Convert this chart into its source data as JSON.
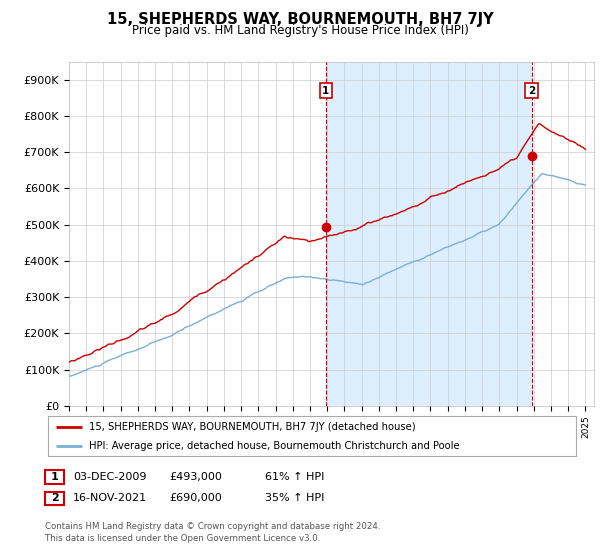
{
  "title": "15, SHEPHERDS WAY, BOURNEMOUTH, BH7 7JY",
  "subtitle": "Price paid vs. HM Land Registry's House Price Index (HPI)",
  "ylim": [
    0,
    950000
  ],
  "yticks": [
    0,
    100000,
    200000,
    300000,
    400000,
    500000,
    600000,
    700000,
    800000,
    900000
  ],
  "ytick_labels": [
    "£0",
    "£100K",
    "£200K",
    "£300K",
    "£400K",
    "£500K",
    "£600K",
    "£700K",
    "£800K",
    "£900K"
  ],
  "hpi_color": "#7bafd4",
  "price_color": "#cc0000",
  "shade_color": "#ddeeff",
  "sale1_date": 2009.92,
  "sale1_price": 493000,
  "sale1_label": "1",
  "sale2_date": 2021.88,
  "sale2_price": 690000,
  "sale2_label": "2",
  "legend_line1": "15, SHEPHERDS WAY, BOURNEMOUTH, BH7 7JY (detached house)",
  "legend_line2": "HPI: Average price, detached house, Bournemouth Christchurch and Poole",
  "table_row1": [
    "1",
    "03-DEC-2009",
    "£493,000",
    "61% ↑ HPI"
  ],
  "table_row2": [
    "2",
    "16-NOV-2021",
    "£690,000",
    "35% ↑ HPI"
  ],
  "footnote": "Contains HM Land Registry data © Crown copyright and database right 2024.\nThis data is licensed under the Open Government Licence v3.0.",
  "background_color": "#ffffff",
  "grid_color": "#cccccc"
}
